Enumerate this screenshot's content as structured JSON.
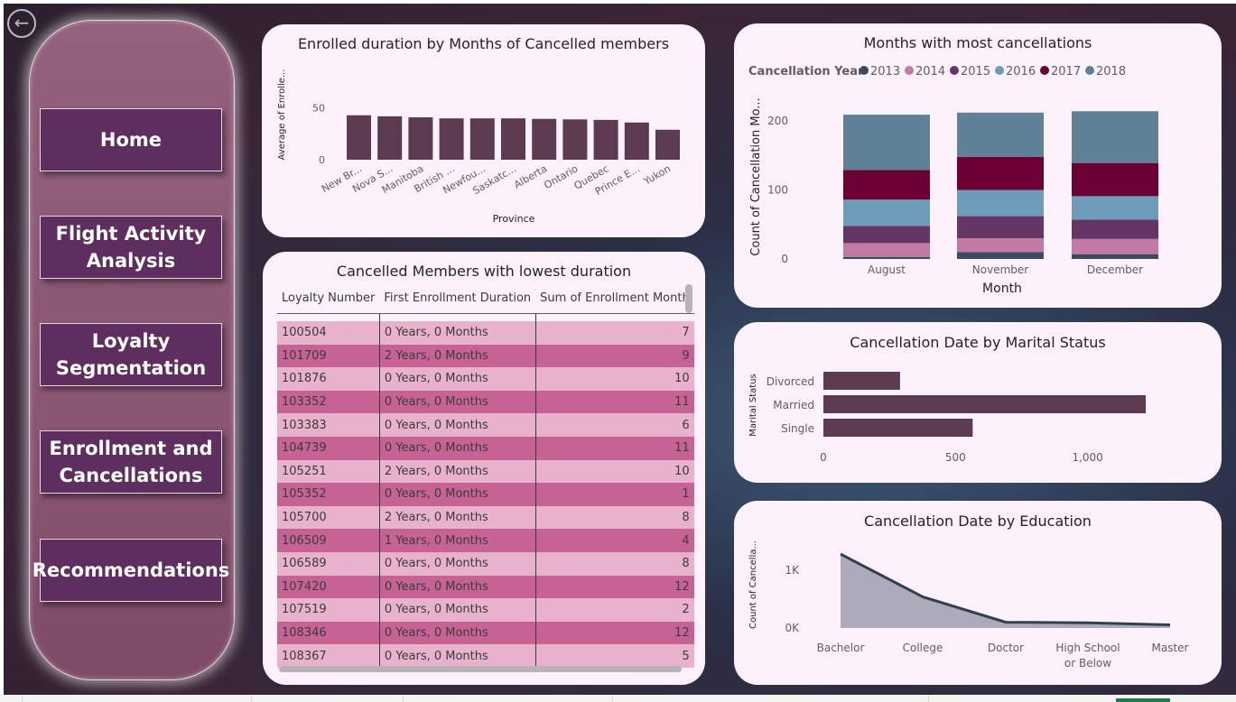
{
  "navigation": {
    "back_icon": "back-arrow-icon",
    "buttons": [
      "Home",
      "Flight Activity Analysis",
      "Loyalty Segmentation",
      "Enrollment and Cancellations",
      "Recommendations"
    ]
  },
  "charts": {
    "province_duration": {
      "title": "Enrolled duration by Months of Cancelled members",
      "chart_data": {
        "type": "bar",
        "title": "Enrolled duration by Months of Cancelled members",
        "xlabel": "Province",
        "ylabel": "Average of Enrolle...",
        "categories": [
          "New Br...",
          "Nova S...",
          "Manitoba",
          "British ...",
          "Newfou...",
          "Saskatc...",
          "Alberta",
          "Ontario",
          "Quebec",
          "Prince E...",
          "Yukon"
        ],
        "values": [
          43,
          42,
          41,
          40,
          40,
          40,
          39.5,
          39,
          38.5,
          36,
          29
        ],
        "yticks": [
          "0",
          "50"
        ],
        "ylim": [
          0,
          55
        ],
        "color": "#5c3a52"
      }
    },
    "monthly_cancellations": {
      "title": "Months with most cancellations",
      "chart_data": {
        "type": "bar",
        "stacked": true,
        "title": "Months with most cancellations",
        "xlabel": "Month",
        "ylabel": "Count of Cancellation Mo...",
        "legend_title": "Cancellation Year",
        "legend_position": "top-left",
        "categories": [
          "August",
          "November",
          "December"
        ],
        "yticks": [
          "0",
          "100",
          "200"
        ],
        "ylim": [
          0,
          230
        ],
        "series": [
          {
            "name": "2013",
            "color": "#3b4a5e",
            "values": [
              3,
              10,
              7
            ]
          },
          {
            "name": "2014",
            "color": "#c27aa5",
            "values": [
              20,
              20,
              22
            ]
          },
          {
            "name": "2015",
            "color": "#653565",
            "values": [
              25,
              32,
              28
            ]
          },
          {
            "name": "2016",
            "color": "#6e9bba",
            "values": [
              38,
              38,
              34
            ]
          },
          {
            "name": "2017",
            "color": "#6b0032",
            "values": [
              43,
              48,
              48
            ]
          },
          {
            "name": "2018",
            "color": "#5e8198",
            "values": [
              80,
              64,
              75
            ]
          }
        ]
      }
    },
    "marital_status": {
      "title": "Cancellation Date by Marital Status",
      "chart_data": {
        "type": "bar",
        "orientation": "horizontal",
        "title": "Cancellation Date by Marital Status",
        "ylabel": "Marital Status",
        "categories": [
          "Divorced",
          "Married",
          "Single"
        ],
        "values": [
          290,
          1220,
          565
        ],
        "xticks": [
          "0",
          "500",
          "1,000"
        ],
        "xlim": [
          0,
          1300
        ],
        "color": "#5c3a52"
      }
    },
    "education": {
      "title": "Cancellation Date by Education",
      "chart_data": {
        "type": "area",
        "title": "Cancellation Date by Education",
        "ylabel": "Count of Cancella...",
        "categories": [
          "Bachelor",
          "College",
          "Doctor",
          "High School or Below",
          "Master"
        ],
        "category_lines": [
          [
            "Bachelor"
          ],
          [
            "College"
          ],
          [
            "Doctor"
          ],
          [
            "High School",
            "or Below"
          ],
          [
            "Master"
          ]
        ],
        "values": [
          1280,
          540,
          100,
          90,
          55
        ],
        "yticks": [
          "0K",
          "1K"
        ],
        "ylim": [
          0,
          1400
        ],
        "fill_color": "#adabbb",
        "line_color": "#2f4150"
      }
    }
  },
  "table": {
    "title": "Cancelled Members with lowest duration",
    "columns": [
      "Loyalty Number",
      "First Enrollment Duration",
      "Sum of Enrollment Month"
    ],
    "rows": [
      [
        "100504",
        "0 Years, 0 Months",
        "7"
      ],
      [
        "101709",
        "2 Years, 0 Months",
        "9"
      ],
      [
        "101876",
        "0 Years, 0 Months",
        "10"
      ],
      [
        "103352",
        "0 Years, 0 Months",
        "11"
      ],
      [
        "103383",
        "0 Years, 0 Months",
        "6"
      ],
      [
        "104739",
        "0 Years, 0 Months",
        "11"
      ],
      [
        "105251",
        "2 Years, 0 Months",
        "10"
      ],
      [
        "105352",
        "0 Years, 0 Months",
        "1"
      ],
      [
        "105700",
        "2 Years, 0 Months",
        "8"
      ],
      [
        "106509",
        "1 Years, 0 Months",
        "4"
      ],
      [
        "106589",
        "0 Years, 0 Months",
        "8"
      ],
      [
        "107420",
        "0 Years, 0 Months",
        "12"
      ],
      [
        "107519",
        "0 Years, 0 Months",
        "2"
      ],
      [
        "108346",
        "0 Years, 0 Months",
        "12"
      ],
      [
        "108367",
        "0 Years, 0 Months",
        "5"
      ]
    ]
  }
}
